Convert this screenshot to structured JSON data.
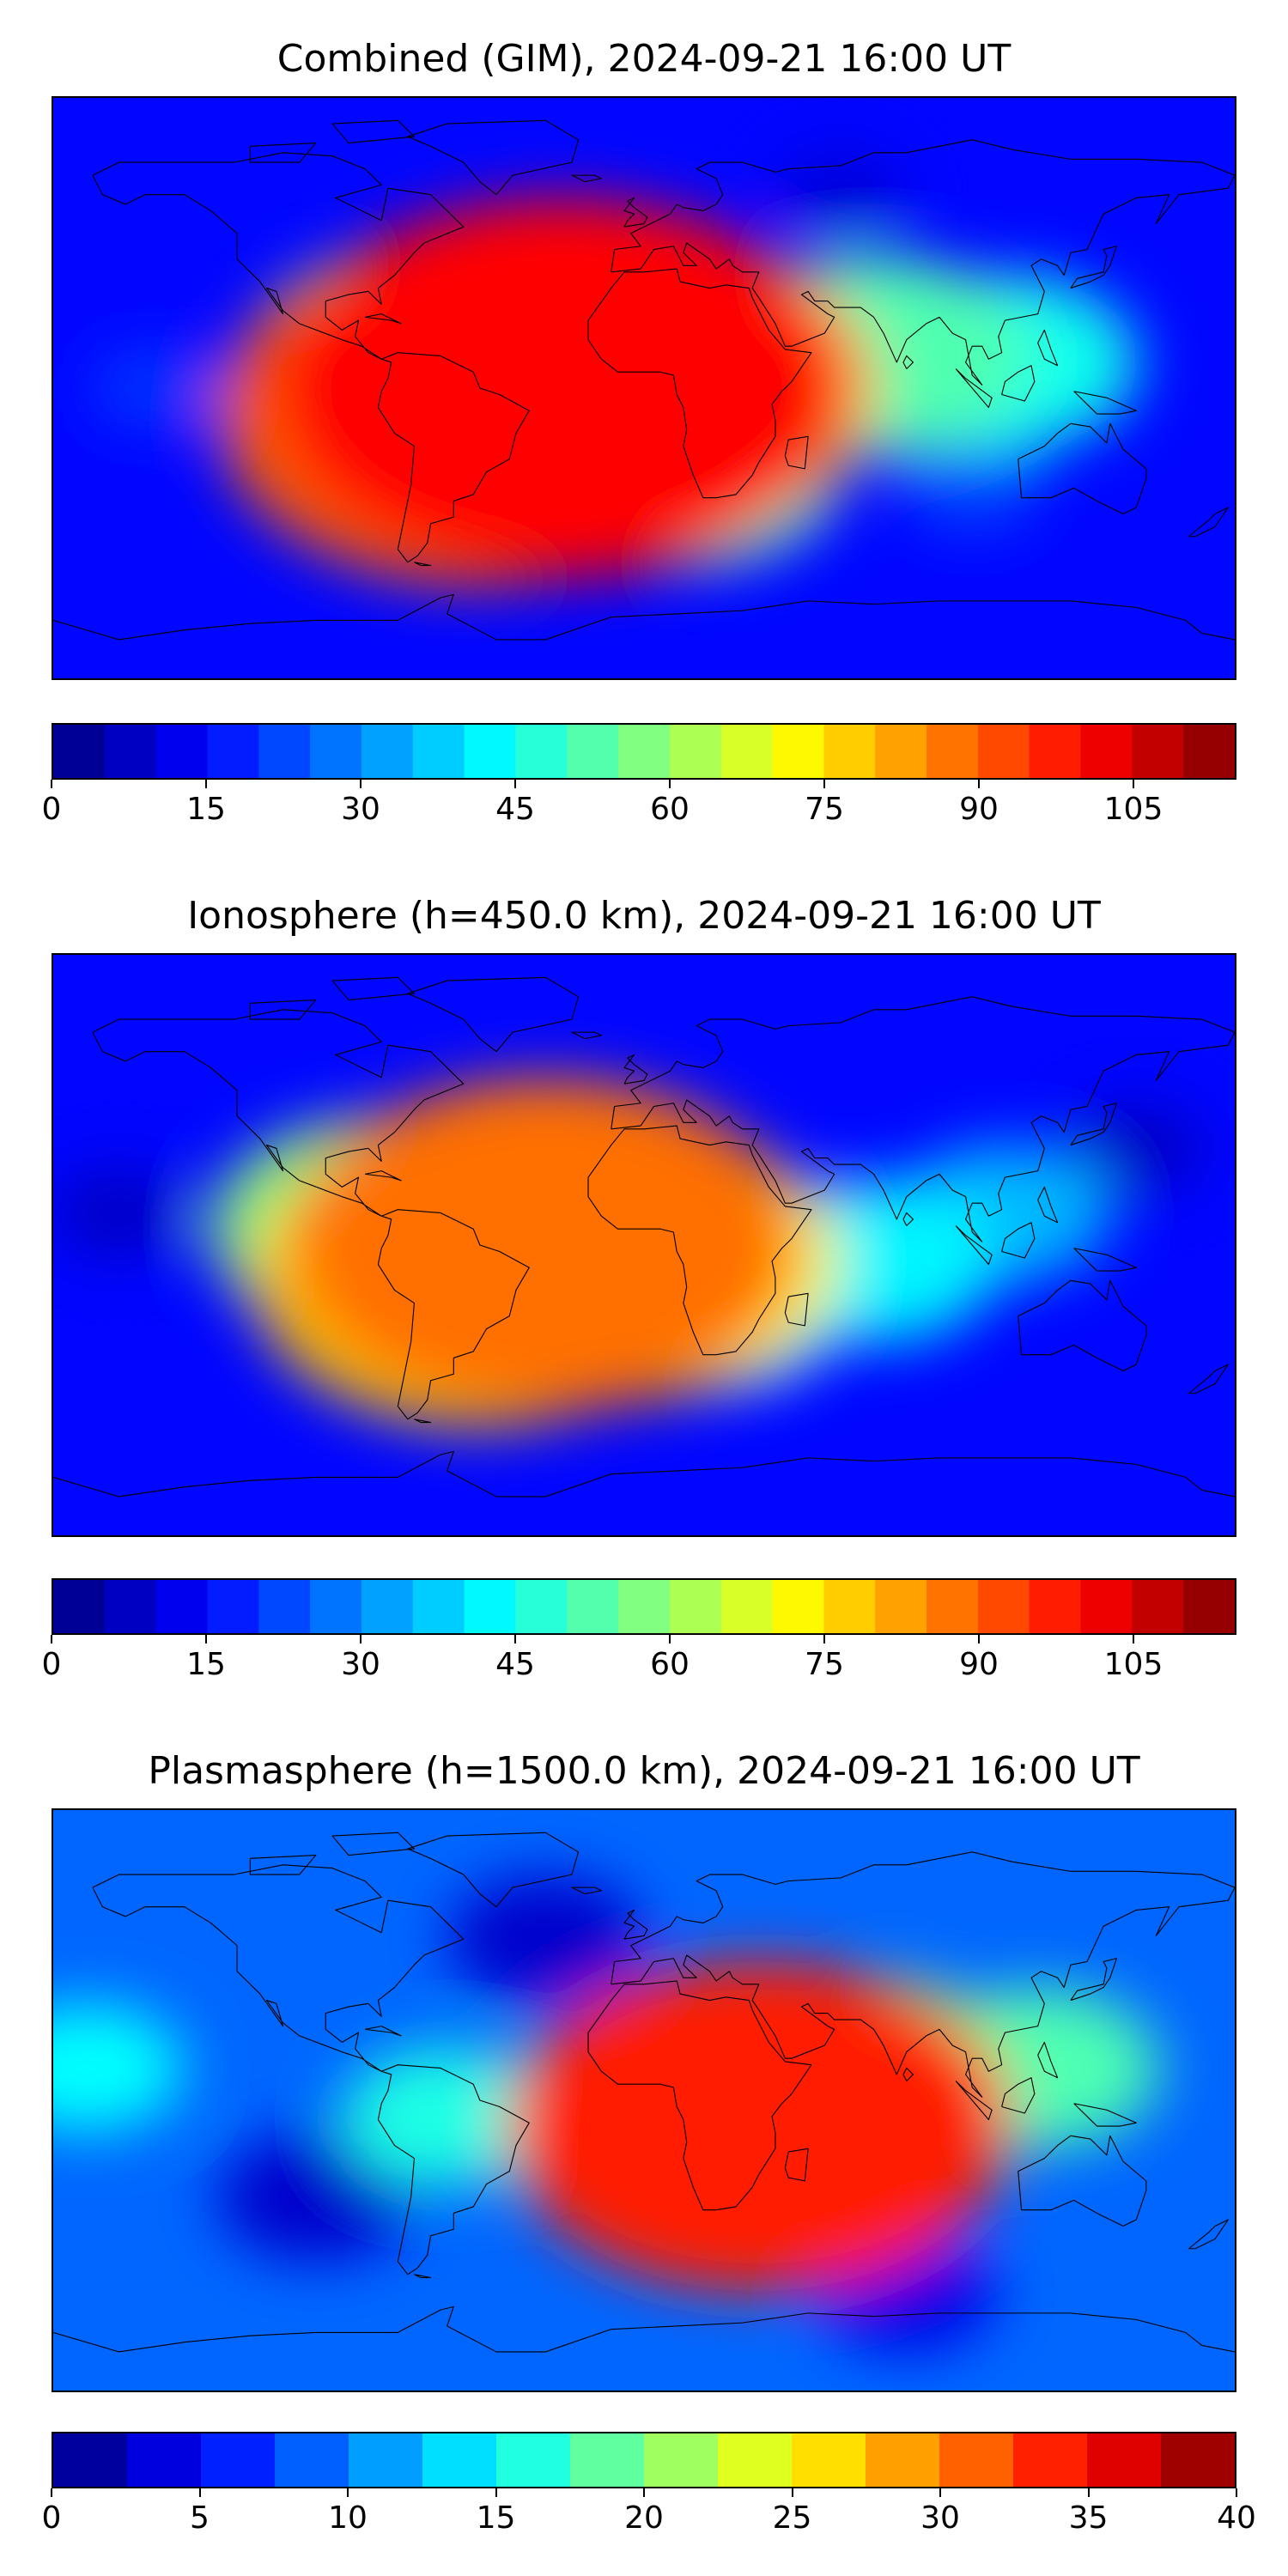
{
  "panels": [
    {
      "title": "Combined (GIM), 2024-09-21 16:00 UT",
      "tick_labels": [
        "0",
        "15",
        "30",
        "45",
        "60",
        "75",
        "90",
        "105"
      ]
    },
    {
      "title": "Ionosphere  (h=450.0 km), 2024-09-21 16:00 UT",
      "tick_labels": [
        "0",
        "15",
        "30",
        "45",
        "60",
        "75",
        "90",
        "105"
      ]
    },
    {
      "title": "Plasmasphere (h=1500.0 km), 2024-09-21 16:00 UT",
      "tick_labels": [
        "0",
        "5",
        "10",
        "15",
        "20",
        "25",
        "30",
        "35",
        "40"
      ]
    }
  ],
  "chart_data": [
    {
      "type": "heatmap",
      "title": "Combined (GIM), 2024-09-21 16:00 UT",
      "colormap": "jet",
      "colorbar": {
        "min": 0,
        "max": 115,
        "step": 5,
        "ticks": [
          0,
          15,
          30,
          45,
          60,
          75,
          90,
          105
        ]
      },
      "background_level": 15,
      "features": [
        {
          "lon": -25,
          "lat": 0,
          "value": 100
        },
        {
          "lon": -50,
          "lat": -8,
          "value": 90
        },
        {
          "lon": 0,
          "lat": 0,
          "value": 80
        },
        {
          "lon": -70,
          "lat": 10,
          "value": 55
        },
        {
          "lon": 15,
          "lat": -25,
          "value": 50
        },
        {
          "lon": 70,
          "lat": 10,
          "value": 52
        },
        {
          "lon": 110,
          "lat": 8,
          "value": 45
        },
        {
          "lon": 100,
          "lat": -30,
          "value": 22
        },
        {
          "lon": -150,
          "lat": 0,
          "value": 20
        },
        {
          "lon": 60,
          "lat": 60,
          "value": 10
        }
      ]
    },
    {
      "type": "heatmap",
      "title": "Ionosphere  (h=450.0 km), 2024-09-21 16:00 UT",
      "colormap": "jet",
      "colorbar": {
        "min": 0,
        "max": 115,
        "step": 5,
        "ticks": [
          0,
          15,
          30,
          45,
          60,
          75,
          90,
          105
        ]
      },
      "background_level": 15,
      "features": [
        {
          "lon": -30,
          "lat": 0,
          "value": 88
        },
        {
          "lon": -50,
          "lat": -10,
          "value": 78
        },
        {
          "lon": -5,
          "lat": -5,
          "value": 72
        },
        {
          "lon": -80,
          "lat": 5,
          "value": 58
        },
        {
          "lon": 25,
          "lat": -20,
          "value": 40
        },
        {
          "lon": 70,
          "lat": -5,
          "value": 42
        },
        {
          "lon": 110,
          "lat": 10,
          "value": 35
        },
        {
          "lon": -160,
          "lat": 10,
          "value": 8
        },
        {
          "lon": 150,
          "lat": 30,
          "value": 8
        }
      ]
    },
    {
      "type": "heatmap",
      "title": "Plasmasphere (h=1500.0 km), 2024-09-21 16:00 UT",
      "colormap": "jet",
      "colorbar": {
        "min": 0,
        "max": 40,
        "step": 2.5,
        "ticks": [
          0,
          5,
          10,
          15,
          20,
          25,
          30,
          35,
          40
        ]
      },
      "background_level": 9,
      "features": [
        {
          "lon": 35,
          "lat": -8,
          "value": 34
        },
        {
          "lon": 30,
          "lat": -5,
          "value": 28
        },
        {
          "lon": 10,
          "lat": 0,
          "value": 22
        },
        {
          "lon": 70,
          "lat": 10,
          "value": 20
        },
        {
          "lon": 120,
          "lat": 10,
          "value": 18
        },
        {
          "lon": -60,
          "lat": -5,
          "value": 16
        },
        {
          "lon": -170,
          "lat": 10,
          "value": 15
        },
        {
          "lon": -100,
          "lat": -30,
          "value": 3
        },
        {
          "lon": -30,
          "lat": 50,
          "value": 3
        },
        {
          "lon": 80,
          "lat": -60,
          "value": 4
        }
      ]
    }
  ]
}
